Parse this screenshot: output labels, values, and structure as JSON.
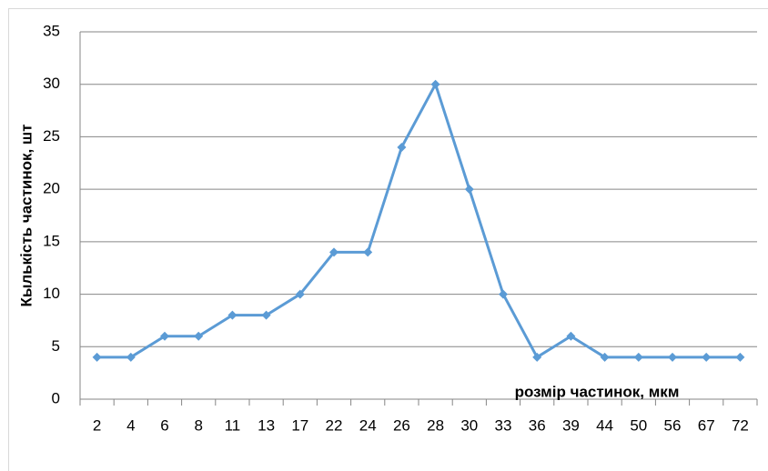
{
  "chart_data": {
    "type": "line",
    "x_label": "розмір частинок, мкм",
    "y_label": "Кылькість частинок, шт",
    "categories": [
      "2",
      "4",
      "6",
      "8",
      "11",
      "13",
      "17",
      "22",
      "24",
      "26",
      "28",
      "30",
      "33",
      "36",
      "39",
      "44",
      "50",
      "56",
      "67",
      "72"
    ],
    "values": [
      4,
      4,
      6,
      6,
      8,
      8,
      10,
      14,
      14,
      24,
      30,
      20,
      10,
      4,
      6,
      4,
      4,
      4,
      4,
      4
    ],
    "color": "#5b9bd5",
    "ylim": [
      0,
      35
    ],
    "yticks": [
      0,
      5,
      10,
      15,
      20,
      25,
      30,
      35
    ],
    "grid": true
  }
}
